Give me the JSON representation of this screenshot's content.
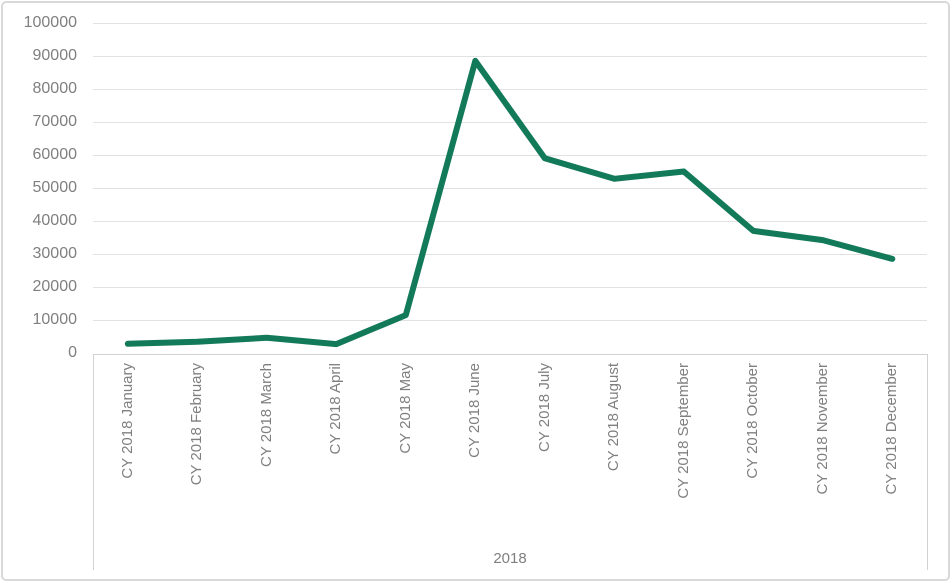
{
  "chart_data": {
    "type": "line",
    "categories": [
      "CY 2018 January",
      "CY 2018 February",
      "CY 2018 March",
      "CY 2018 April",
      "CY 2018 May",
      "CY 2018 June",
      "CY 2018 July",
      "CY 2018 August",
      "CY 2018 September",
      "CY 2018 October",
      "CY 2018 November",
      "CY 2018 December"
    ],
    "values": [
      2800,
      3400,
      4600,
      2700,
      11500,
      88500,
      59000,
      52800,
      55000,
      37000,
      34200,
      28500
    ],
    "title": "",
    "xlabel": "",
    "ylabel": "",
    "group_label": "2018",
    "ylim": [
      0,
      100000
    ],
    "ytick_step": 10000,
    "ytick_labels": [
      "0",
      "10000",
      "20000",
      "30000",
      "40000",
      "50000",
      "60000",
      "70000",
      "80000",
      "90000",
      "100000"
    ],
    "grid": "horizontal",
    "legend": "none",
    "colors": {
      "series_line": "#127a58",
      "tick_text": "#7f7f7f",
      "gridline": "#e2e2e2",
      "axis_line": "#d2d2d2",
      "frame_border": "#d9d9d9",
      "background": "#ffffff"
    }
  }
}
